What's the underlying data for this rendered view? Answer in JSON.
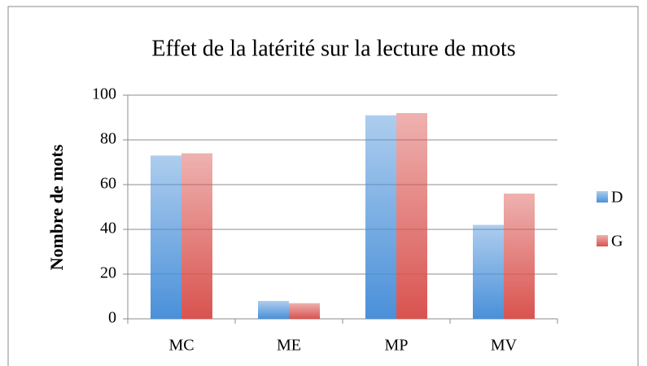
{
  "chart_data": {
    "type": "bar",
    "title": "Effet de la latérité sur la lecture de mots",
    "y_label": "Nombre de mots",
    "categories": [
      "MC",
      "ME",
      "MP",
      "MV"
    ],
    "series": [
      {
        "name": "D",
        "color": "#4a90d9",
        "values": [
          73,
          8,
          91,
          42
        ]
      },
      {
        "name": "G",
        "color": "#d9534f",
        "values": [
          74,
          7,
          92,
          56
        ]
      }
    ],
    "ylim": [
      0,
      100
    ],
    "yticks": [
      0,
      20,
      40,
      60,
      80,
      100
    ],
    "grid": true,
    "legend": "right"
  }
}
